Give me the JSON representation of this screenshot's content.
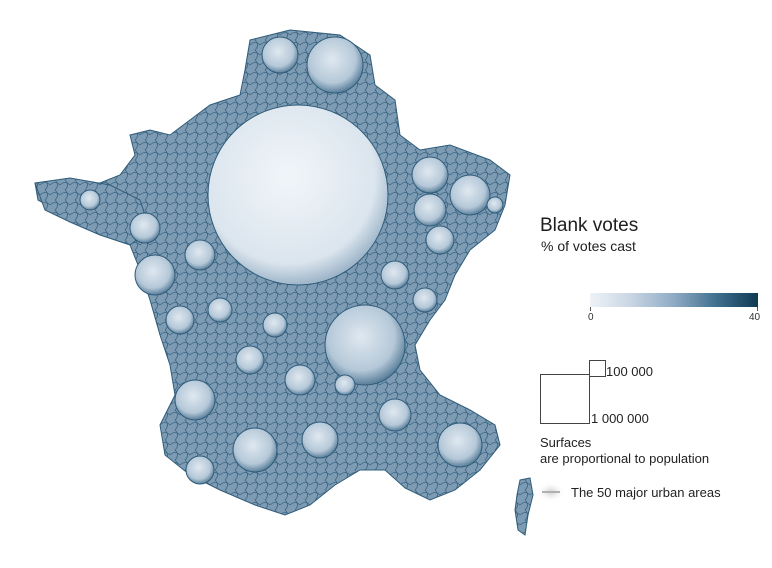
{
  "legend": {
    "title": "Blank votes",
    "subtitle": "% of votes cast",
    "scale_min_label": "0",
    "scale_max_label": "40",
    "scale_min_value": 0,
    "scale_max_value": 40,
    "ramp_colors": [
      "#eef2f7",
      "#c7d5e3",
      "#8fabc4",
      "#40708f",
      "#0e3a52"
    ]
  },
  "size_legend": {
    "small_label": "100 000",
    "large_label": "1 000 000",
    "note_line1": "Surfaces",
    "note_line2": "are proportional to population"
  },
  "urban": {
    "label": "The 50 major urban areas"
  },
  "colors": {
    "map_base": "#86a3bb",
    "map_edge": "#2f5c7a",
    "paris_fill": "#e3eaf2"
  }
}
